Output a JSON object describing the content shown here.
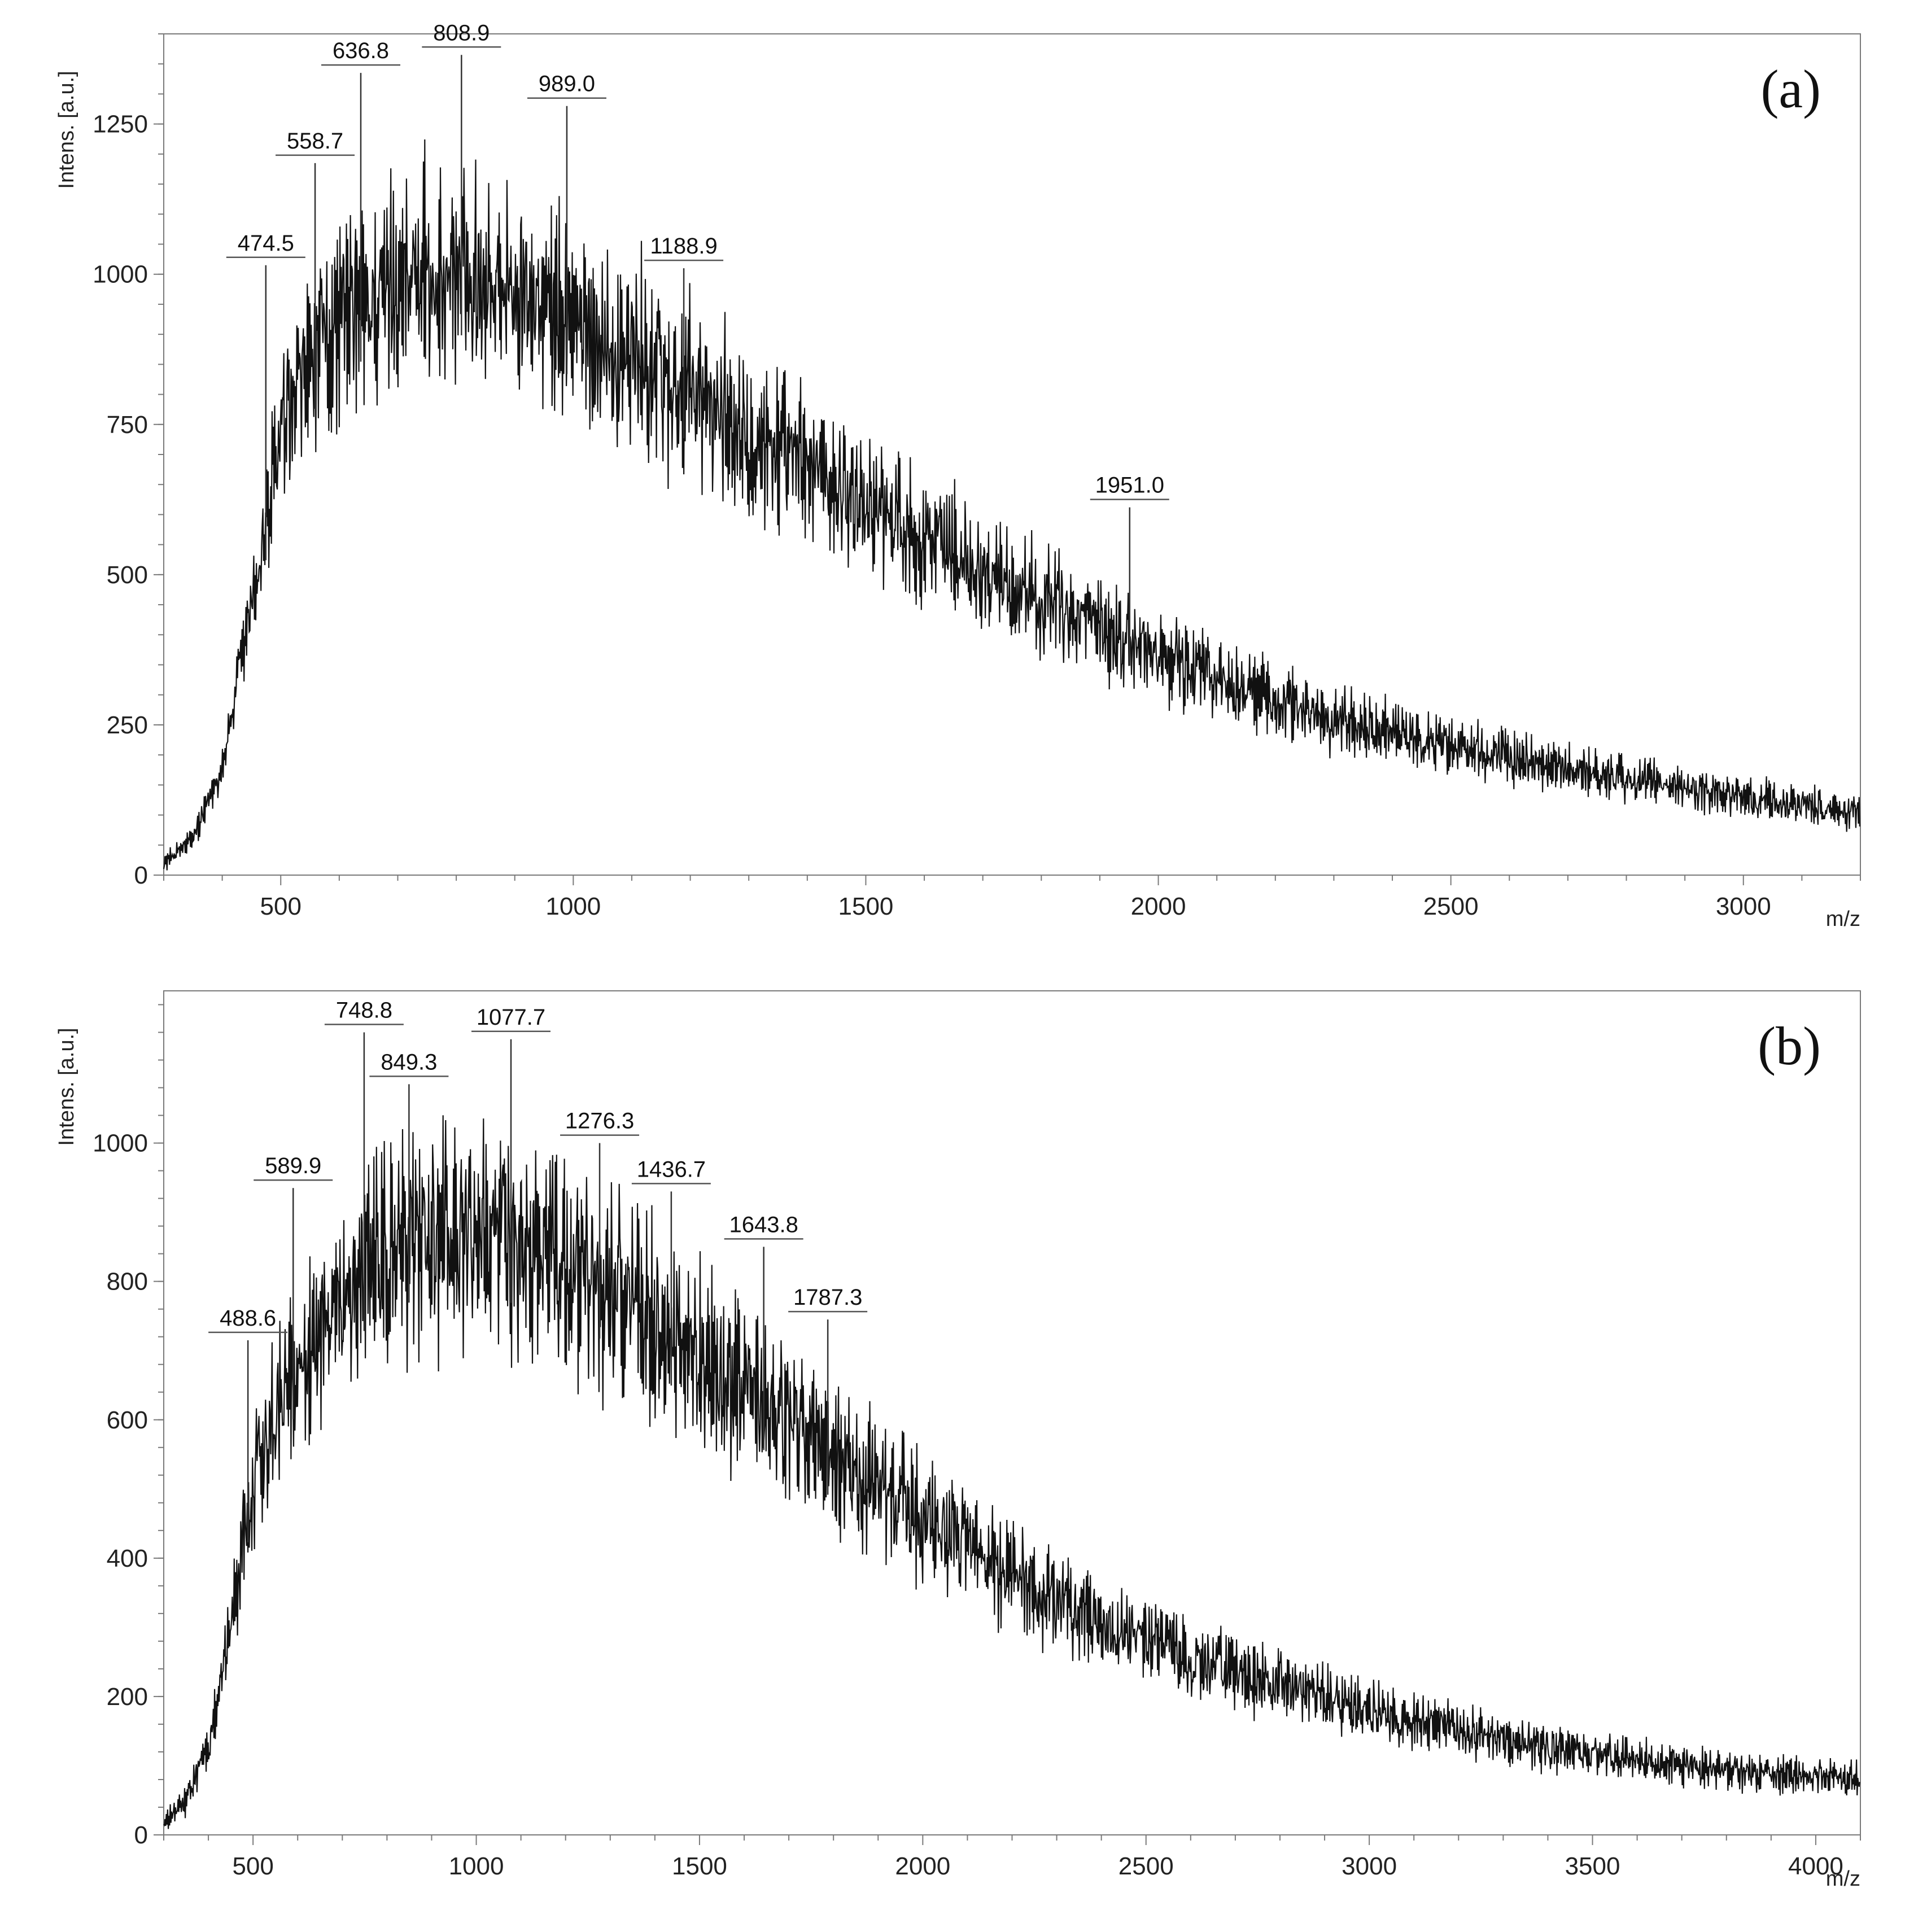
{
  "chart_data": [
    {
      "type": "line",
      "panel_label": "(a)",
      "ylabel": "Intens. [a.u.]",
      "xlabel": "m/z",
      "xlim": [
        300,
        3200
      ],
      "ylim": [
        0,
        1400
      ],
      "xticks": [
        500,
        1000,
        1500,
        2000,
        2500,
        3000
      ],
      "xtick_labels": [
        "500",
        "1000",
        "1500",
        "2000",
        "2500",
        "3000"
      ],
      "yticks": [
        0,
        250,
        500,
        750,
        1000,
        1250
      ],
      "ytick_labels": [
        "0",
        "250",
        "500",
        "750",
        "1000",
        "1250"
      ],
      "envelope": [
        [
          300,
          20
        ],
        [
          350,
          60
        ],
        [
          400,
          180
        ],
        [
          450,
          450
        ],
        [
          500,
          720
        ],
        [
          550,
          850
        ],
        [
          600,
          920
        ],
        [
          650,
          960
        ],
        [
          700,
          990
        ],
        [
          750,
          1000
        ],
        [
          800,
          1000
        ],
        [
          850,
          990
        ],
        [
          900,
          970
        ],
        [
          950,
          950
        ],
        [
          1000,
          920
        ],
        [
          1100,
          870
        ],
        [
          1200,
          800
        ],
        [
          1300,
          740
        ],
        [
          1400,
          680
        ],
        [
          1500,
          620
        ],
        [
          1600,
          565
        ],
        [
          1700,
          510
        ],
        [
          1800,
          460
        ],
        [
          1900,
          410
        ],
        [
          2000,
          365
        ],
        [
          2200,
          290
        ],
        [
          2400,
          235
        ],
        [
          2600,
          195
        ],
        [
          2800,
          160
        ],
        [
          3000,
          130
        ],
        [
          3200,
          105
        ]
      ],
      "peaks": [
        {
          "mz": 474.5,
          "intensity": 1015,
          "label": "474.5"
        },
        {
          "mz": 558.7,
          "intensity": 1185,
          "label": "558.7"
        },
        {
          "mz": 636.8,
          "intensity": 1335,
          "label": "636.8"
        },
        {
          "mz": 808.9,
          "intensity": 1365,
          "label": "808.9"
        },
        {
          "mz": 989.0,
          "intensity": 1280,
          "label": "989.0"
        },
        {
          "mz": 1188.9,
          "intensity": 1010,
          "label": "1188.9"
        },
        {
          "mz": 1951.0,
          "intensity": 612,
          "label": "1951.0"
        }
      ]
    },
    {
      "type": "line",
      "panel_label": "(b)",
      "ylabel": "Intens. [a.u.]",
      "xlabel": "m/z",
      "xlim": [
        300,
        4100
      ],
      "ylim": [
        0,
        1220
      ],
      "xticks": [
        500,
        1000,
        1500,
        2000,
        2500,
        3000,
        3500,
        4000
      ],
      "xtick_labels": [
        "500",
        "1000",
        "1500",
        "2000",
        "2500",
        "3000",
        "3500",
        "4000"
      ],
      "yticks": [
        0,
        200,
        400,
        600,
        800,
        1000
      ],
      "ytick_labels": [
        "0",
        "200",
        "400",
        "600",
        "800",
        "1000"
      ],
      "envelope": [
        [
          300,
          15
        ],
        [
          350,
          50
        ],
        [
          400,
          130
        ],
        [
          450,
          300
        ],
        [
          500,
          520
        ],
        [
          550,
          620
        ],
        [
          600,
          680
        ],
        [
          700,
          780
        ],
        [
          800,
          840
        ],
        [
          900,
          870
        ],
        [
          1000,
          870
        ],
        [
          1100,
          850
        ],
        [
          1200,
          820
        ],
        [
          1300,
          790
        ],
        [
          1400,
          740
        ],
        [
          1500,
          690
        ],
        [
          1600,
          640
        ],
        [
          1700,
          590
        ],
        [
          1800,
          540
        ],
        [
          1900,
          500
        ],
        [
          2000,
          455
        ],
        [
          2200,
          370
        ],
        [
          2400,
          305
        ],
        [
          2600,
          255
        ],
        [
          2800,
          215
        ],
        [
          3000,
          180
        ],
        [
          3200,
          150
        ],
        [
          3400,
          125
        ],
        [
          3600,
          110
        ],
        [
          3800,
          95
        ],
        [
          4100,
          80
        ]
      ],
      "peaks": [
        {
          "mz": 488.6,
          "intensity": 715,
          "label": "488.6"
        },
        {
          "mz": 589.9,
          "intensity": 935,
          "label": "589.9"
        },
        {
          "mz": 748.8,
          "intensity": 1160,
          "label": "748.8"
        },
        {
          "mz": 849.3,
          "intensity": 1085,
          "label": "849.3"
        },
        {
          "mz": 1077.7,
          "intensity": 1150,
          "label": "1077.7"
        },
        {
          "mz": 1276.3,
          "intensity": 1000,
          "label": "1276.3"
        },
        {
          "mz": 1436.7,
          "intensity": 930,
          "label": "1436.7"
        },
        {
          "mz": 1643.8,
          "intensity": 850,
          "label": "1643.8"
        },
        {
          "mz": 1787.3,
          "intensity": 745,
          "label": "1787.3"
        }
      ]
    }
  ]
}
